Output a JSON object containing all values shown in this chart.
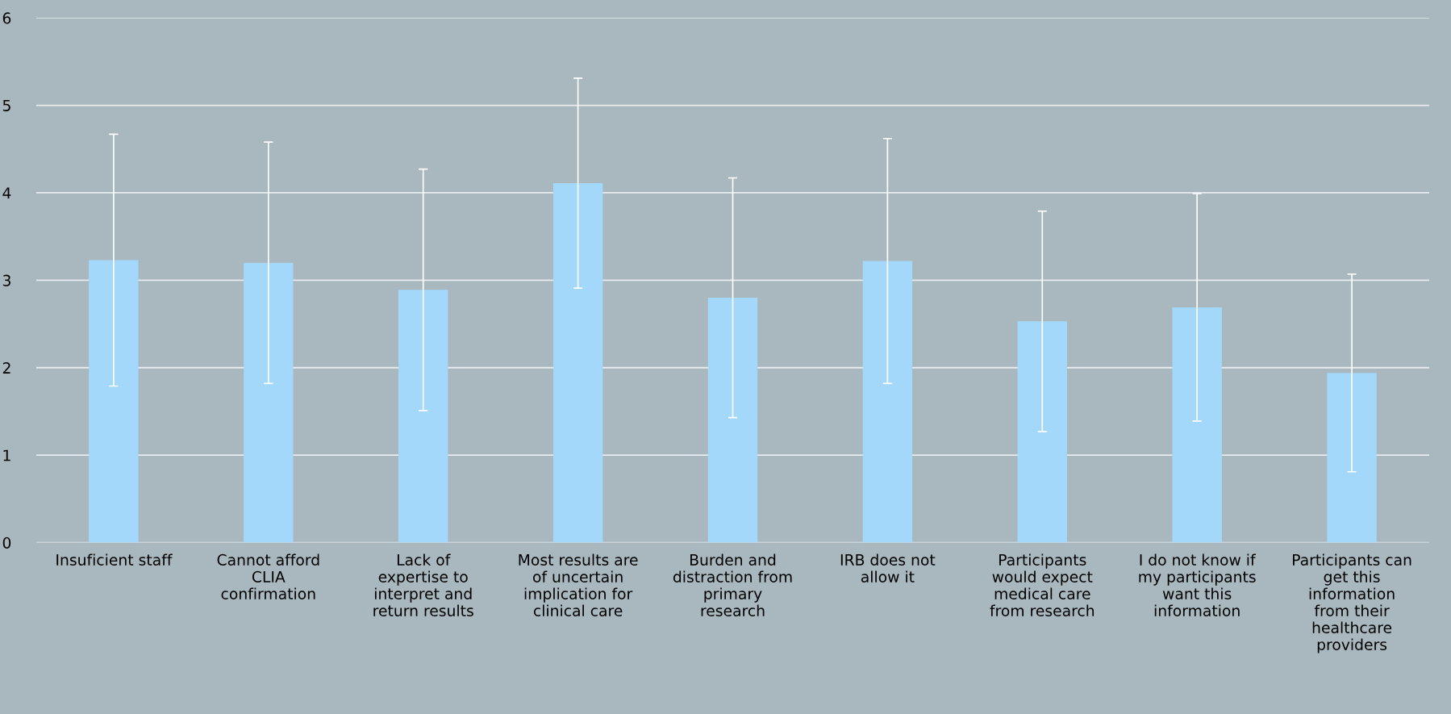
{
  "chart_data": {
    "type": "bar",
    "categories": [
      "Insuficient staff",
      "Cannot afford\nCLIA\nconfirmation",
      "Lack of\nexpertise to\ninterpret and\nreturn results",
      "Most results are\nof uncertain\nimplication for\nclinical care",
      "Burden and\ndistraction from\nprimary\nresearch",
      "IRB does not\nallow it",
      "Participants\nwould expect\nmedical care\nfrom research",
      "I do not know if\nmy participants\nwant this\ninformation",
      "Participants can\nget this\ninformation\nfrom their\nhealthcare\nproviders"
    ],
    "values": [
      3.23,
      3.2,
      2.89,
      4.11,
      2.8,
      3.22,
      2.53,
      2.69,
      1.94
    ],
    "errors": [
      1.44,
      1.38,
      1.38,
      1.2,
      1.37,
      1.4,
      1.26,
      1.3,
      1.13
    ],
    "color": "#a3d8fb",
    "ylim": [
      0,
      6
    ],
    "yticks": [
      0,
      1,
      2,
      3,
      4,
      5,
      6
    ],
    "grid": "y"
  }
}
